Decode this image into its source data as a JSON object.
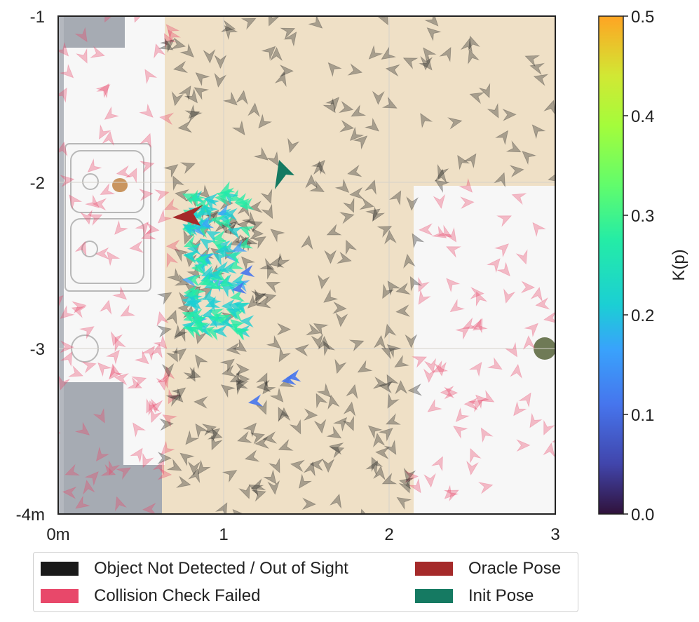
{
  "chart_data": {
    "type": "scatter",
    "x_ticks": [
      "0m",
      "1",
      "2",
      "3"
    ],
    "y_ticks": [
      "-1",
      "-2",
      "-3",
      "-4m"
    ],
    "xlim": [
      0,
      3
    ],
    "ylim": [
      -4,
      -1
    ],
    "grid": true,
    "legend_placement": "bottom",
    "colorbar": {
      "label": "K(p)",
      "range": [
        0.0,
        0.5
      ],
      "ticks": [
        "0.0",
        "0.1",
        "0.2",
        "0.3",
        "0.4",
        "0.5"
      ],
      "colormap": "turbo-like"
    },
    "series": [
      {
        "name": "Object Not Detected / Out of Sight",
        "color": "#1a1a1a"
      },
      {
        "name": "Collision Check Failed",
        "color": "#e8486a"
      },
      {
        "name": "Oracle Pose",
        "color": "#a52a2a"
      },
      {
        "name": "Init Pose",
        "color": "#157a62"
      }
    ],
    "oracle_pose": {
      "x": 0.78,
      "y": -2.2
    },
    "init_pose": {
      "x": 1.35,
      "y": -2.02
    },
    "high_score_cluster": {
      "x_range": [
        0.75,
        1.1
      ],
      "y_range": [
        -2.9,
        -2.05
      ],
      "score_range": [
        0.2,
        0.33
      ]
    },
    "low_score_points": [
      {
        "x": 1.1,
        "y": -2.55,
        "k": 0.15
      },
      {
        "x": 1.05,
        "y": -2.65,
        "k": 0.14
      },
      {
        "x": 1.35,
        "y": -3.2,
        "k": 0.13
      },
      {
        "x": 1.38,
        "y": -3.18,
        "k": 0.12
      },
      {
        "x": 1.15,
        "y": -3.33,
        "k": 0.13
      }
    ]
  }
}
